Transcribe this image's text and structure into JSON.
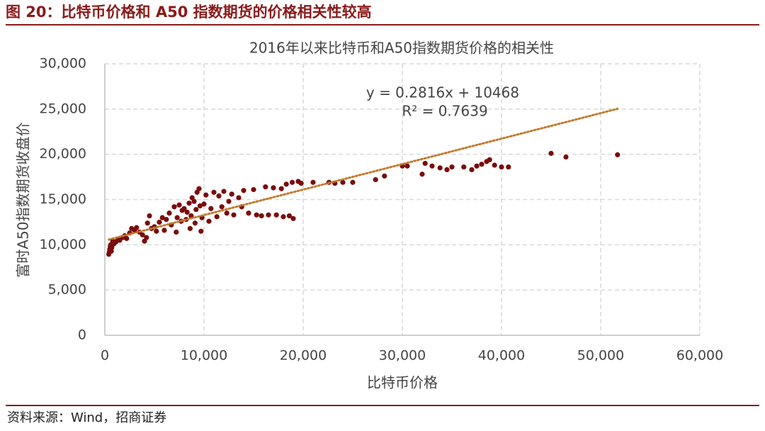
{
  "header": {
    "title": "图 20：比特币价格和 A50 指数期货的价格相关性较高"
  },
  "source": "资料来源：Wind，招商证券",
  "chart_data": {
    "type": "scatter",
    "title": "2016年以来比特币和A50指数期货价格的相关性",
    "x_label": "比特币价格",
    "y_label": "富时A50指数期货收盘价",
    "color": "#7a0c0c",
    "x": [
      400,
      450,
      500,
      550,
      600,
      650,
      700,
      800,
      900,
      1100,
      1300,
      1500,
      1800,
      2000,
      2200,
      2500,
      2700,
      3000,
      3200,
      3500,
      3800,
      4000,
      4200,
      4300,
      4500,
      4700,
      5000,
      5200,
      5500,
      5800,
      6000,
      6200,
      6500,
      6700,
      7000,
      7200,
      7300,
      7500,
      7700,
      7800,
      8000,
      8200,
      8300,
      8500,
      8600,
      8700,
      8800,
      9000,
      9100,
      9200,
      9300,
      9500,
      9600,
      9700,
      9800,
      10000,
      10200,
      10500,
      10700,
      11000,
      11300,
      11500,
      11800,
      12000,
      12300,
      12500,
      12800,
      13000,
      13500,
      13800,
      14000,
      14500,
      15000,
      15300,
      15800,
      16200,
      16500,
      17000,
      17300,
      17800,
      18000,
      18300,
      18600,
      18900,
      19000,
      19500,
      19800,
      21000,
      22600,
      23200,
      24000,
      25000,
      27300,
      28200,
      30000,
      30500,
      32000,
      32300,
      33000,
      33800,
      34500,
      35000,
      36200,
      37000,
      37500,
      38000,
      38500,
      38800,
      39300,
      40000,
      40700,
      45000,
      46500,
      51700
    ],
    "values": [
      8950,
      9200,
      9500,
      9800,
      10000,
      9300,
      9700,
      10400,
      10100,
      10300,
      10600,
      10500,
      10800,
      11000,
      10700,
      11300,
      11800,
      11600,
      11900,
      11400,
      11100,
      10400,
      10800,
      12400,
      13200,
      11800,
      12000,
      11500,
      12500,
      13000,
      11600,
      12800,
      13500,
      12200,
      14200,
      11400,
      13000,
      14400,
      12600,
      13800,
      14000,
      12800,
      13600,
      14600,
      11800,
      13200,
      15200,
      14800,
      12400,
      13900,
      15800,
      16200,
      14300,
      11500,
      13000,
      14500,
      15500,
      12600,
      14000,
      15800,
      13100,
      15400,
      14200,
      15900,
      13500,
      14800,
      15600,
      13300,
      15200,
      14200,
      16000,
      13500,
      16100,
      13300,
      13200,
      16400,
      13300,
      16300,
      13300,
      16200,
      13100,
      16700,
      13200,
      16900,
      12900,
      17000,
      16800,
      16900,
      16900,
      16800,
      16900,
      16900,
      17200,
      17600,
      18700,
      18700,
      17800,
      19000,
      18700,
      18500,
      18300,
      18600,
      18600,
      18300,
      18700,
      18900,
      19200,
      19400,
      18800,
      18600,
      18600,
      20100,
      19700,
      19950
    ],
    "trendline": {
      "slope": 0.2816,
      "intercept": 10468,
      "color": "#c27a2c",
      "equation": "y = 0.2816x + 10468",
      "r2": "R² = 0.7639"
    },
    "xlim": [
      0,
      60000
    ],
    "ylim": [
      0,
      30000
    ],
    "xticks": [
      0,
      {
        "value": 10000,
        "label": "10,000"
      },
      {
        "value": 20000,
        "label": "20,000"
      },
      {
        "value": 30000,
        "label": "30,000"
      },
      {
        "value": 40000,
        "label": "40,000"
      },
      {
        "value": 50000,
        "label": "50,000"
      },
      {
        "value": 60000,
        "label": "60,000"
      }
    ],
    "yticks": [
      0,
      {
        "value": 5000,
        "label": "5,000"
      },
      {
        "value": 10000,
        "label": "10,000"
      },
      {
        "value": 15000,
        "label": "15,000"
      },
      {
        "value": 20000,
        "label": "20,000"
      },
      {
        "value": 25000,
        "label": "25,000"
      },
      {
        "value": 30000,
        "label": "30,000"
      }
    ],
    "grid": true
  }
}
